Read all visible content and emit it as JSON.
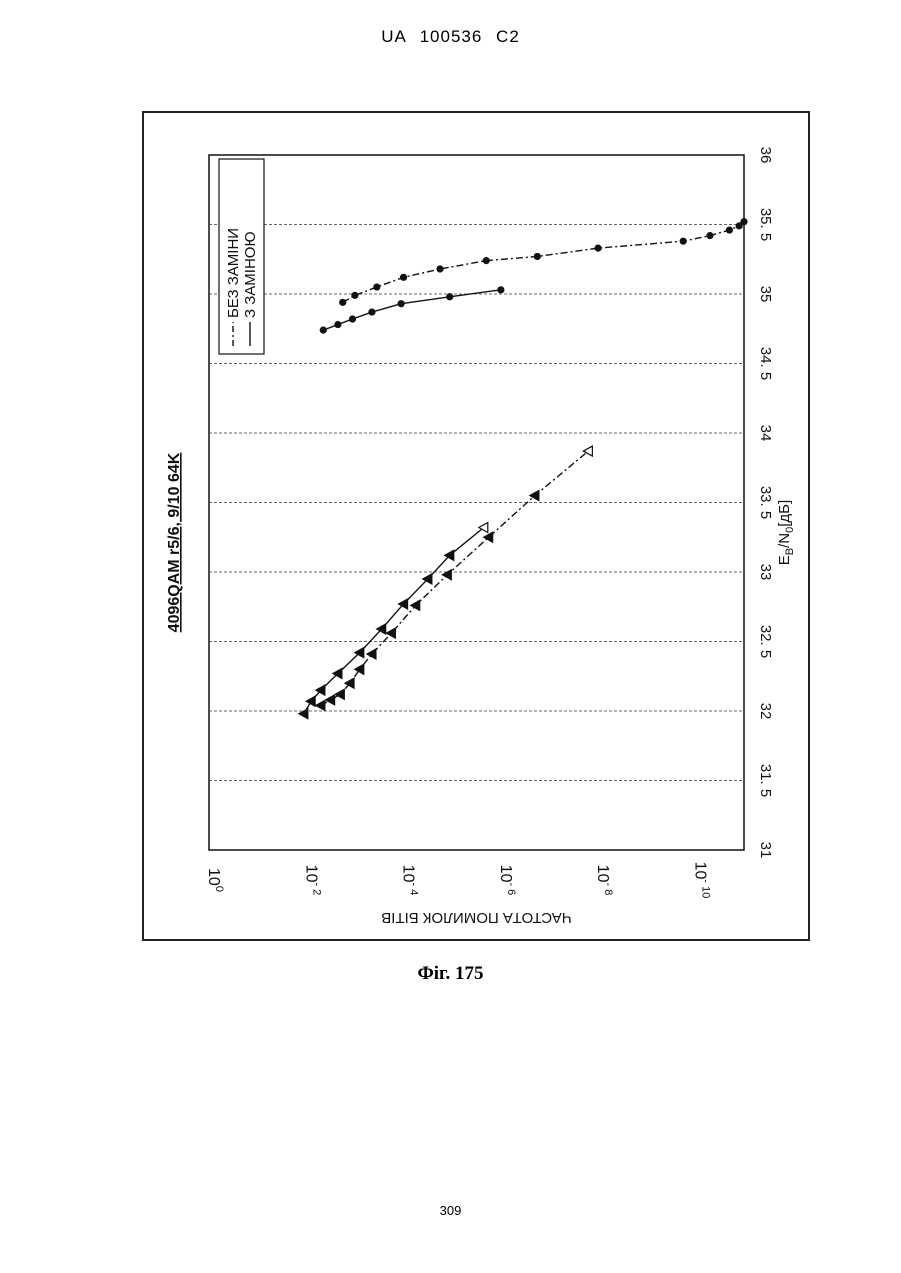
{
  "header": {
    "doc_id": "UA   100536   C2"
  },
  "figure": {
    "caption": "Фіг. 175"
  },
  "footer": {
    "page_number": "309"
  },
  "chart_data": {
    "type": "line",
    "title": "4096QAM r5/6, 9/10 64K",
    "xlabel": "EB/N0[дБ]",
    "xlabel_parts": {
      "main": "E",
      "sub1": "B",
      "slash": "/N",
      "sub2": "0",
      "unit": "[дБ]"
    },
    "ylabel": "ЧАСТОТА ПОМИЛОК БІТІВ",
    "xlim": [
      31,
      36
    ],
    "ylim_log10": [
      -11,
      0
    ],
    "y_scale": "log",
    "grid": true,
    "orientation": "rotated 90° counter-clockwise on the page",
    "x_ticks": [
      "31",
      "31. 5",
      "32",
      "32. 5",
      "33",
      "33. 5",
      "34",
      "34. 5",
      "35",
      "35. 5",
      "36"
    ],
    "x_tick_values": [
      31,
      31.5,
      32,
      32.5,
      33,
      33.5,
      34,
      34.5,
      35,
      35.5,
      36
    ],
    "y_ticks": [
      {
        "exp": 0,
        "base": "10",
        "sup": "0"
      },
      {
        "exp": -2,
        "base": "10",
        "sup": "- 2"
      },
      {
        "exp": -4,
        "base": "10",
        "sup": "- 4"
      },
      {
        "exp": -6,
        "base": "10",
        "sup": "- 6"
      },
      {
        "exp": -8,
        "base": "10",
        "sup": "- 8"
      },
      {
        "exp": -10,
        "base": "10",
        "sup": "- 10"
      }
    ],
    "legend": {
      "placement": "top-right",
      "entries": [
        {
          "label": "БЕЗ ЗАМІНИ",
          "style": "dash-dot"
        },
        {
          "label": "З ЗАМІНОЮ",
          "style": "solid"
        }
      ]
    },
    "series": [
      {
        "name": "БЕЗ ЗАМІНИ",
        "group": "r5/6",
        "marker": "triangle",
        "style": "dash-dot",
        "x": [
          32.04,
          32.08,
          32.12,
          32.2,
          32.3,
          32.41,
          32.56,
          32.76,
          32.98,
          33.25,
          33.55,
          33.87
        ],
        "log_y": [
          -2.3,
          -2.5,
          -2.7,
          -2.9,
          -3.1,
          -3.35,
          -3.75,
          -4.25,
          -4.9,
          -5.75,
          -6.7,
          -7.8
        ]
      },
      {
        "name": "З ЗАМІНОЮ",
        "group": "r5/6",
        "marker": "triangle",
        "style": "solid",
        "x": [
          31.98,
          32.07,
          32.15,
          32.27,
          32.42,
          32.59,
          32.77,
          32.95,
          33.12,
          33.32
        ],
        "log_y": [
          -1.95,
          -2.1,
          -2.3,
          -2.65,
          -3.1,
          -3.55,
          -4.0,
          -4.5,
          -4.95,
          -5.65
        ]
      },
      {
        "name": "БЕЗ ЗАМІНИ",
        "group": "r9/10",
        "marker": "circle",
        "style": "dash-dot",
        "x": [
          34.94,
          34.99,
          35.05,
          35.12,
          35.18,
          35.24,
          35.27,
          35.33,
          35.38,
          35.42,
          35.46,
          35.49,
          35.52
        ],
        "log_y": [
          -2.75,
          -3.0,
          -3.45,
          -4.0,
          -4.75,
          -5.7,
          -6.75,
          -8.0,
          -9.75,
          -10.3,
          -10.7,
          -10.9,
          -11.0
        ]
      },
      {
        "name": "З ЗАМІНОЮ",
        "group": "r9/10",
        "marker": "circle",
        "style": "solid",
        "x": [
          34.74,
          34.78,
          34.82,
          34.87,
          34.93,
          34.98,
          35.03
        ],
        "log_y": [
          -2.35,
          -2.65,
          -2.95,
          -3.35,
          -3.95,
          -4.95,
          -6.0
        ]
      }
    ]
  }
}
